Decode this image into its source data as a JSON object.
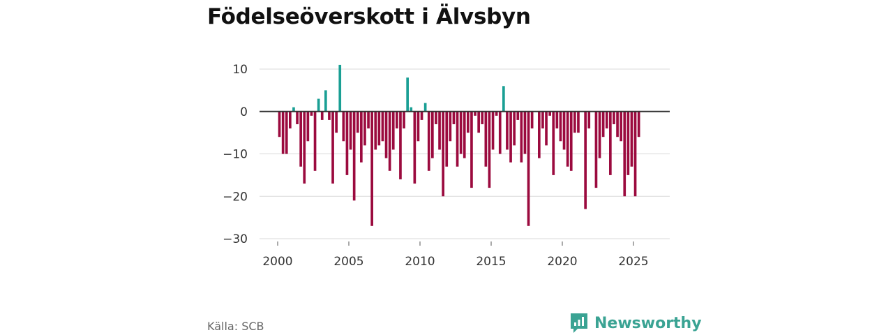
{
  "title": "Födelseöverskott i Älvsbyn",
  "source": "Källa: SCB",
  "brand": {
    "name": "Newsworthy",
    "logo_icon": "newsworthy-logo-icon"
  },
  "colors": {
    "positive": "#1a9f94",
    "negative": "#9b0a3e",
    "grid": "#d9d9d9",
    "zero": "#333333",
    "text": "#333333"
  },
  "chart_data": {
    "type": "bar",
    "title": "Födelseöverskott i Älvsbyn",
    "xlabel": "",
    "ylabel": "",
    "xlim": [
      2000,
      2026.5
    ],
    "ylim": [
      -30,
      10
    ],
    "y_ticks": [
      10,
      0,
      -10,
      -20,
      -30
    ],
    "y_tick_labels": [
      "10",
      "0",
      "−10",
      "−20",
      "−30"
    ],
    "x_ticks": [
      2000,
      2005,
      2010,
      2015,
      2020,
      2025
    ],
    "x_tick_labels": [
      "2000",
      "2005",
      "2010",
      "2015",
      "2020",
      "2025"
    ],
    "grid": true,
    "frequency": "quarterly",
    "start_period": "2000-Q1",
    "values": [
      -6,
      -10,
      -10,
      -4,
      1,
      -3,
      -13,
      -17,
      -7,
      -1,
      -14,
      3,
      -2,
      5,
      -2,
      -17,
      -5,
      11,
      -7,
      -15,
      -9,
      -21,
      -5,
      -12,
      -8,
      -4,
      -27,
      -9,
      -8,
      -7,
      -11,
      -14,
      -9,
      -4,
      -16,
      -4,
      8,
      1,
      -17,
      -7,
      -2,
      2,
      -14,
      -11,
      -3,
      -9,
      -20,
      -13,
      -7,
      -3,
      -13,
      -10,
      -11,
      -5,
      -18,
      -1,
      -5,
      -3,
      -13,
      -18,
      -9,
      -1,
      -10,
      6,
      -9,
      -12,
      -8,
      -2,
      -12,
      -10,
      -27,
      -4,
      0,
      -11,
      -4,
      -8,
      -1,
      -15,
      -4,
      -7,
      -9,
      -13,
      -14,
      -5,
      -5,
      0,
      -23,
      -4,
      0,
      -18,
      -11,
      -6,
      -4,
      -15,
      -3,
      -6,
      -7,
      -20,
      -15,
      -13,
      -20,
      -6
    ]
  }
}
